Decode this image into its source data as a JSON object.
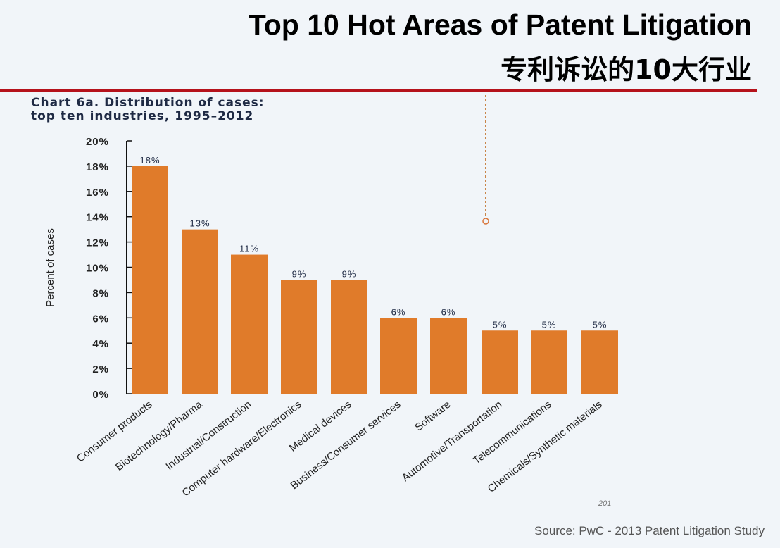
{
  "header": {
    "title": "Top 10 Hot Areas of Patent Litigation",
    "subtitle": "专利诉讼的10大行业"
  },
  "source": "Source: PwC - 2013 Patent Litigation Study",
  "page_mark": "201",
  "chart_data": {
    "type": "bar",
    "title": "Chart 6a. Distribution of cases:",
    "subtitle": "top ten industries, 1995–2012",
    "xlabel": "",
    "ylabel": "Percent of cases",
    "ylim": [
      0,
      20
    ],
    "yticks": [
      "0%",
      "2%",
      "4%",
      "6%",
      "8%",
      "10%",
      "12%",
      "14%",
      "16%",
      "18%",
      "20%"
    ],
    "categories": [
      "Consumer products",
      "Biotechnology/Pharma",
      "Industrial/Construction",
      "Computer hardware/Electronics",
      "Medical devices",
      "Business/Consumer services",
      "Software",
      "Automotive/Transportation",
      "Telecommunications",
      "Chemicals/Synthetic materials"
    ],
    "values": [
      18,
      13,
      11,
      9,
      9,
      6,
      6,
      5,
      5,
      5
    ],
    "data_labels": [
      "18%",
      "13%",
      "11%",
      "9%",
      "9%",
      "6%",
      "6%",
      "5%",
      "5%",
      "5%"
    ],
    "bar_color": "#e07b2a",
    "grid": false
  }
}
